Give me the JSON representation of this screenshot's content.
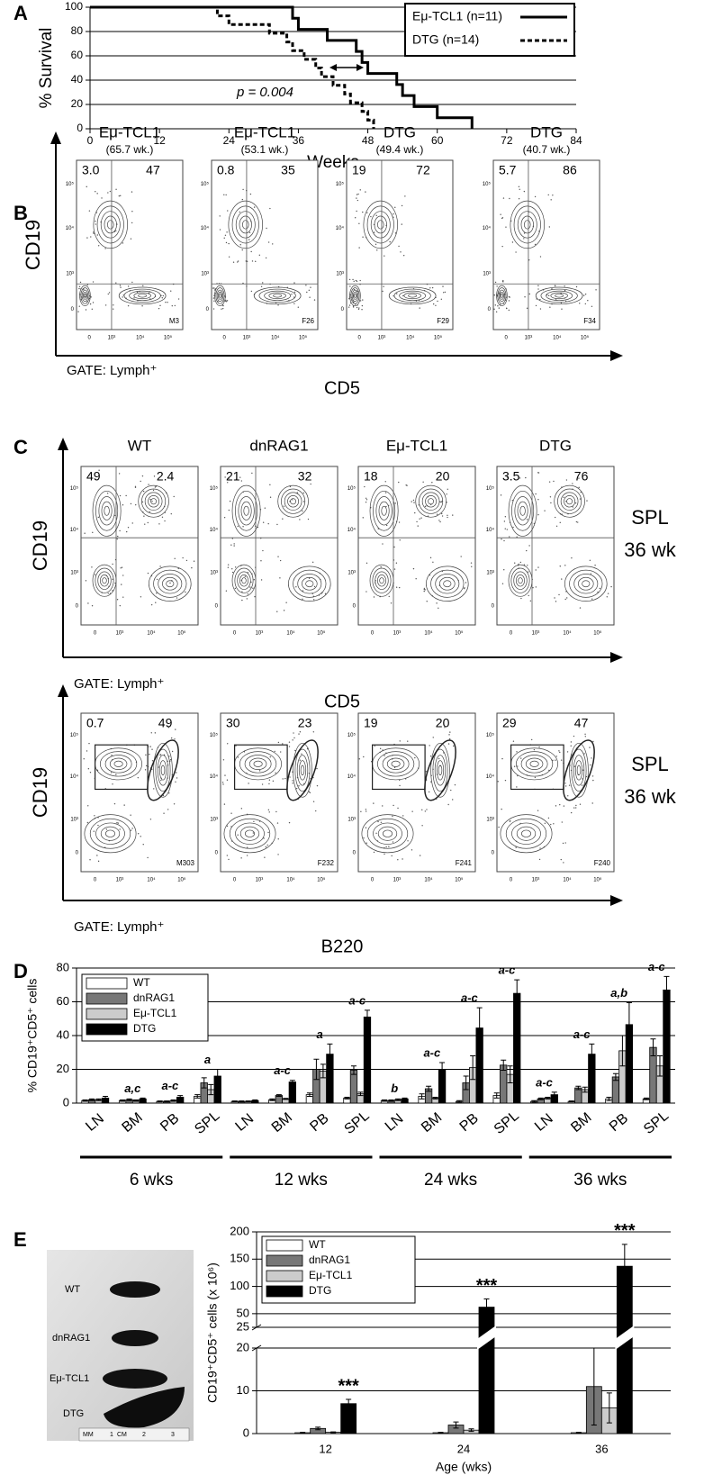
{
  "chart_data": [
    {
      "type": "step",
      "panel_label": "A",
      "x_label": "Weeks",
      "y_label": "% Survival",
      "xlim": [
        0,
        84
      ],
      "xticks": [
        0,
        12,
        24,
        36,
        48,
        60,
        72,
        84
      ],
      "ylim": [
        0,
        100
      ],
      "yticks": [
        0,
        20,
        40,
        60,
        80,
        100
      ],
      "grid": true,
      "legend": "upper right",
      "annotation": "p = 0.004",
      "series": [
        {
          "name": "Eμ-TCL1 (n=11)",
          "color": "#000000",
          "line_style": "solid",
          "x": [
            0,
            35,
            36,
            41,
            46,
            47,
            48,
            53,
            54,
            56,
            60,
            66
          ],
          "values": [
            100,
            90.9,
            81.8,
            72.7,
            63.6,
            54.5,
            45.5,
            36.4,
            27.3,
            18.2,
            9.1,
            0
          ]
        },
        {
          "name": "DTG (n=14)",
          "color": "#000000",
          "line_style": "dashed",
          "x": [
            0,
            22,
            24,
            31,
            34,
            35,
            37,
            39,
            40,
            42,
            44,
            45,
            47,
            48,
            49
          ],
          "values": [
            100,
            92.9,
            85.7,
            78.6,
            71.4,
            64.3,
            57.1,
            50,
            42.9,
            35.7,
            28.6,
            21.4,
            14.3,
            7.1,
            0
          ]
        }
      ]
    },
    {
      "type": "bar",
      "panel_label": "D",
      "y_label": "% CD19⁺CD5⁺ cells",
      "ylim": [
        0,
        80
      ],
      "yticks": [
        0,
        20,
        40,
        60,
        80
      ],
      "grid": true,
      "legend": "upper left",
      "categories": [
        "LN",
        "BM",
        "PB",
        "SPL",
        "LN",
        "BM",
        "PB",
        "SPL",
        "LN",
        "BM",
        "PB",
        "SPL",
        "LN",
        "BM",
        "PB",
        "SPL"
      ],
      "groups": [
        "6 wks",
        "12 wks",
        "24 wks",
        "36 wks"
      ],
      "annotations": [
        null,
        "a,c",
        "a-c",
        "a",
        null,
        "a-c",
        "a",
        "a-c",
        "b",
        "a-c",
        "a-c",
        "a-c",
        "a-c",
        "a-c",
        "a,b",
        "a-c"
      ],
      "series": [
        {
          "name": "WT",
          "color": "#ffffff",
          "values": [
            1.5,
            1.5,
            1,
            4,
            1,
            2,
            5,
            3,
            1.5,
            4,
            1,
            4.5,
            1,
            1,
            2.5,
            2.5
          ],
          "errors": [
            0.4,
            0.4,
            0.3,
            1,
            0.3,
            0.5,
            1,
            0.5,
            0.4,
            1.5,
            0.5,
            1.5,
            0.5,
            0.3,
            1,
            0.5
          ]
        },
        {
          "name": "dnRAG1",
          "color": "#777777",
          "values": [
            2,
            2,
            1,
            12,
            1,
            4.5,
            20,
            19.5,
            1.5,
            8.5,
            12,
            22.5,
            2.5,
            9,
            15.5,
            33
          ],
          "errors": [
            0.5,
            0.5,
            0.3,
            3,
            0.3,
            0.5,
            6,
            2.5,
            0.4,
            1.5,
            4,
            3,
            0.5,
            1,
            2,
            5
          ]
        },
        {
          "name": "Eμ-TCL1",
          "color": "#cccccc",
          "values": [
            2,
            1.5,
            1.5,
            8,
            1,
            2.5,
            19,
            5.5,
            2,
            3,
            21,
            17,
            3,
            8,
            31,
            22
          ],
          "errors": [
            0.5,
            0.4,
            0.4,
            3,
            0.3,
            0.3,
            4,
            1,
            0.5,
            0.5,
            7,
            5,
            0.5,
            1.5,
            9,
            6
          ]
        },
        {
          "name": "DTG",
          "color": "#000000",
          "values": [
            3,
            2.5,
            3.5,
            16,
            1.5,
            12.5,
            29,
            51,
            2.5,
            20,
            44.5,
            65,
            5,
            29,
            46.5,
            67
          ],
          "errors": [
            1,
            0.5,
            1,
            4,
            0.4,
            1,
            6,
            4,
            0.5,
            4,
            12,
            8,
            1.5,
            6,
            13,
            8
          ]
        }
      ]
    },
    {
      "type": "bar",
      "panel_label": "E",
      "x_label": "Age (wks)",
      "y_label": "CD19⁺CD5⁺ cells (x 10⁶)",
      "categories": [
        "12",
        "24",
        "36"
      ],
      "ylim": [
        0,
        200
      ],
      "yticks": [
        0,
        10,
        20,
        25,
        50,
        100,
        150,
        200
      ],
      "axis_break": [
        20,
        25
      ],
      "grid": true,
      "legend": "upper left",
      "annotations": [
        "***",
        "***",
        "***"
      ],
      "series": [
        {
          "name": "WT",
          "color": "#ffffff",
          "values": [
            0.2,
            0.2,
            0.2
          ],
          "errors": [
            0.1,
            0.1,
            0.1
          ]
        },
        {
          "name": "dnRAG1",
          "color": "#777777",
          "values": [
            1.2,
            2,
            11
          ],
          "errors": [
            0.3,
            0.7,
            9
          ]
        },
        {
          "name": "Eμ-TCL1",
          "color": "#cccccc",
          "values": [
            0.3,
            0.8,
            6
          ],
          "errors": [
            0.1,
            0.3,
            3.5
          ]
        },
        {
          "name": "DTG",
          "color": "#000000",
          "values": [
            7,
            62,
            137
          ],
          "errors": [
            1,
            15,
            40
          ]
        }
      ]
    }
  ],
  "flow_panels": {
    "axis_ticks": [
      "0",
      "10³",
      "10⁴",
      "10⁵"
    ],
    "B": {
      "panel_label": "B",
      "y_label": "CD19",
      "x_label": "CD5",
      "gate": "GATE: Lymph⁺",
      "plots": [
        {
          "title": "Eμ-TCL1",
          "subtitle": "(65.7 wk.)",
          "upper_left": "3.0",
          "upper_right": "47",
          "id": "M3"
        },
        {
          "title": "Eμ-TCL1",
          "subtitle": "(53.1 wk.)",
          "upper_left": "0.8",
          "upper_right": "35",
          "id": "F26"
        },
        {
          "title": "DTG",
          "subtitle": "(49.4 wk.)",
          "upper_left": "19",
          "upper_right": "72",
          "id": "F29"
        },
        {
          "title": "DTG",
          "subtitle": "(40.7 wk.)",
          "upper_left": "5.7",
          "upper_right": "86",
          "id": "F34"
        }
      ]
    },
    "C": {
      "panel_label": "C",
      "rows": [
        {
          "y_label": "CD19",
          "x_label": "CD5",
          "gate": "GATE: Lymph⁺",
          "side": [
            "SPL",
            "36 wk"
          ],
          "plots": [
            {
              "title": "WT",
              "upper_left": "49",
              "upper_right": "2.4"
            },
            {
              "title": "dnRAG1",
              "upper_left": "21",
              "upper_right": "32"
            },
            {
              "title": "Eμ-TCL1",
              "upper_left": "18",
              "upper_right": "20"
            },
            {
              "title": "DTG",
              "upper_left": "3.5",
              "upper_right": "76"
            }
          ]
        },
        {
          "y_label": "CD19",
          "x_label": "B220",
          "gate": "GATE: Lymph⁺",
          "side": [
            "SPL",
            "36 wk"
          ],
          "plots": [
            {
              "upper_left": "0.7",
              "upper_right": "49",
              "id": "M303"
            },
            {
              "upper_left": "30",
              "upper_right": "23",
              "id": "F232"
            },
            {
              "upper_left": "19",
              "upper_right": "20",
              "id": "F241"
            },
            {
              "upper_left": "29",
              "upper_right": "47",
              "id": "F240"
            }
          ]
        }
      ]
    }
  },
  "photo": {
    "labels": [
      "WT",
      "dnRAG1",
      "Eμ-TCL1",
      "DTG"
    ],
    "ruler": [
      "MM",
      "1",
      "CM",
      "2",
      "3"
    ]
  }
}
